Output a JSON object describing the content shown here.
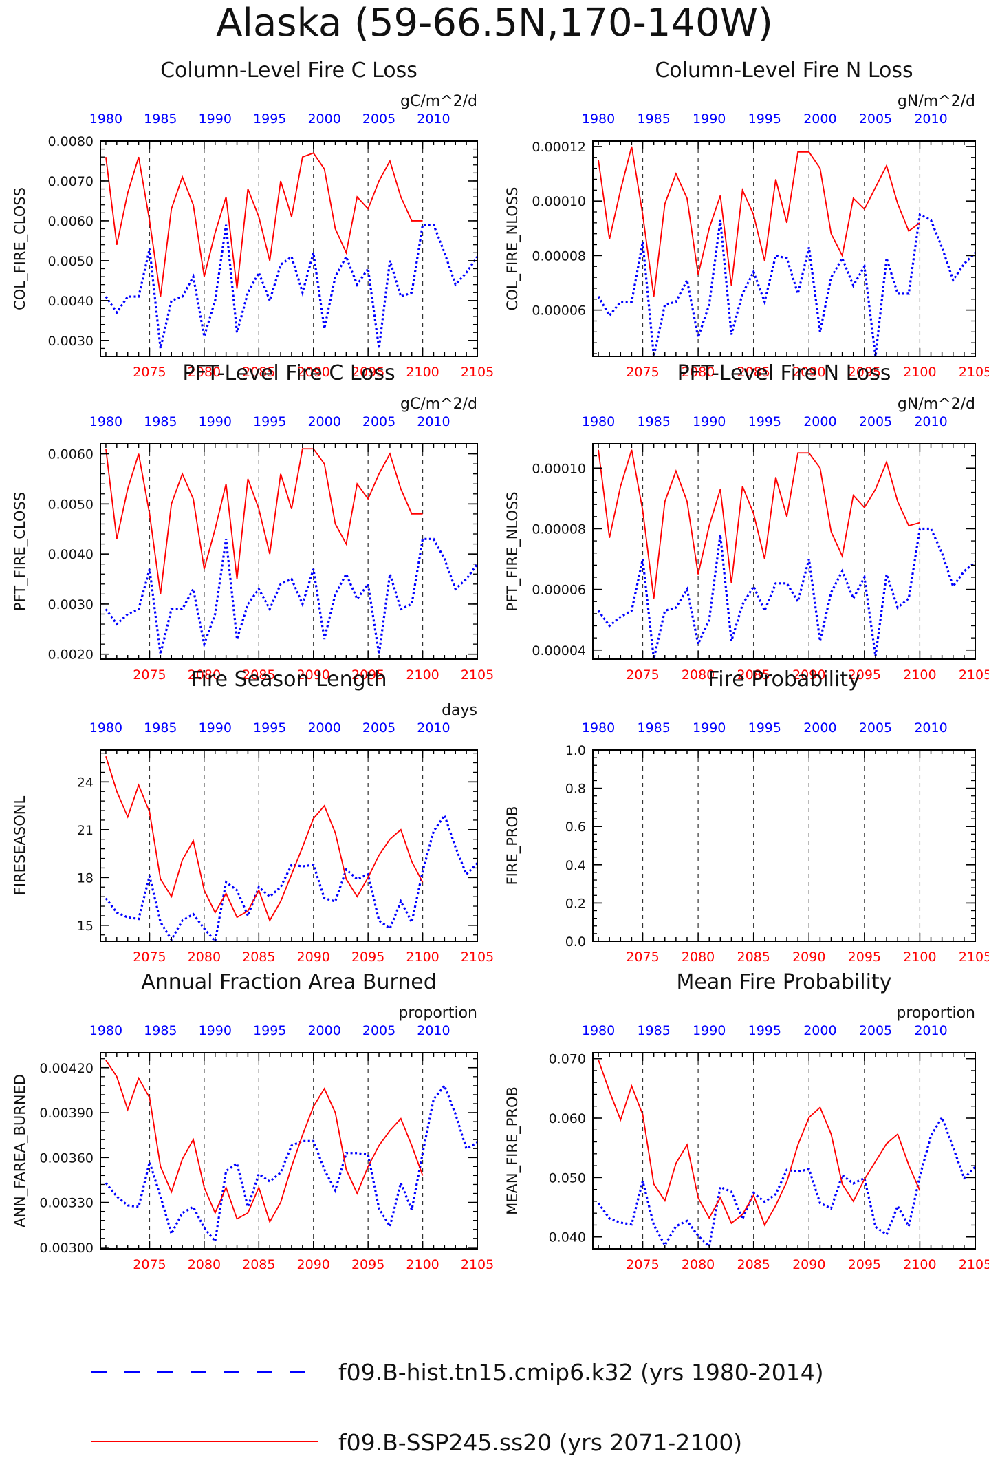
{
  "page_title": "Alaska (59-66.5N,170-140W)",
  "colors": {
    "hist": "#0000ff",
    "ssp": "#ff0000",
    "axis": "#000000"
  },
  "legend": [
    {
      "label": "f09.B-hist.tn15.cmip6.k32 (yrs 1980-2014)",
      "color": "#0000ff",
      "style": "dashed"
    },
    {
      "label": "f09.B-SSP245.ss20 (yrs 2071-2100)",
      "color": "#ff0000",
      "style": "solid"
    }
  ],
  "chart_data": [
    {
      "type": "line",
      "title": "Column-Level Fire C Loss",
      "units": "gC/m^2/d",
      "ylabel": "COL_FIRE_CLOSS",
      "ylim": [
        0.0026,
        0.008
      ],
      "yticks": [
        "0.0030",
        "0.0040",
        "0.0050",
        "0.0060",
        "0.0070",
        "0.0080"
      ],
      "ytick_values": [
        0.003,
        0.004,
        0.005,
        0.006,
        0.007,
        0.008
      ],
      "x_top_ticks": [
        "1980",
        "1985",
        "1990",
        "1995",
        "2000",
        "2005",
        "2010"
      ],
      "x_bottom_ticks": [
        "2075",
        "2080",
        "2085",
        "2090",
        "2095",
        "2100",
        "2105"
      ],
      "series": [
        {
          "values": [
            0.0041,
            0.0037,
            0.0041,
            0.0041,
            0.0053,
            0.0028,
            0.004,
            0.0041,
            0.0046,
            0.0031,
            0.004,
            0.0059,
            0.0032,
            0.0042,
            0.0047,
            0.004,
            0.0049,
            0.0051,
            0.0042,
            0.0052,
            0.0033,
            0.0046,
            0.0051,
            0.0044,
            0.0048,
            0.0028,
            0.005,
            0.0041,
            0.0042,
            0.0059,
            0.0059,
            0.0052,
            0.0044,
            0.0047,
            0.0051
          ]
        },
        {
          "values": [
            0.0076,
            0.0054,
            0.0067,
            0.0076,
            0.006,
            0.0041,
            0.0063,
            0.0071,
            0.0064,
            0.0046,
            0.0057,
            0.0066,
            0.0043,
            0.0068,
            0.0061,
            0.005,
            0.007,
            0.0061,
            0.0076,
            0.0077,
            0.0073,
            0.0058,
            0.0052,
            0.0066,
            0.0063,
            0.007,
            0.0075,
            0.0066,
            0.006,
            0.006
          ]
        }
      ]
    },
    {
      "type": "line",
      "title": "Column-Level Fire N Loss",
      "units": "gN/m^2/d",
      "ylabel": "COL_FIRE_NLOSS",
      "ylim": [
        4.3e-05,
        0.000122
      ],
      "yticks": [
        "0.00006",
        "0.00008",
        "0.00010",
        "0.00012"
      ],
      "ytick_values": [
        6e-05,
        8e-05,
        0.0001,
        0.00012
      ],
      "x_top_ticks": [
        "1980",
        "1985",
        "1990",
        "1995",
        "2000",
        "2005",
        "2010"
      ],
      "x_bottom_ticks": [
        "2075",
        "2080",
        "2085",
        "2090",
        "2095",
        "2100",
        "2105"
      ],
      "series": [
        {
          "values": [
            6.5e-05,
            5.8e-05,
            6.3e-05,
            6.3e-05,
            8.5e-05,
            4.3e-05,
            6.2e-05,
            6.3e-05,
            7.1e-05,
            5e-05,
            6.2e-05,
            9.3e-05,
            5.1e-05,
            6.6e-05,
            7.4e-05,
            6.3e-05,
            8e-05,
            7.9e-05,
            6.6e-05,
            8.3e-05,
            5.2e-05,
            7.2e-05,
            7.9e-05,
            6.9e-05,
            7.6e-05,
            4.3e-05,
            7.9e-05,
            6.6e-05,
            6.6e-05,
            9.5e-05,
            9.3e-05,
            8.3e-05,
            7.1e-05,
            7.7e-05,
            8.1e-05
          ]
        },
        {
          "values": [
            0.000115,
            8.6e-05,
            0.000104,
            0.00012,
            9.5e-05,
            6.5e-05,
            9.9e-05,
            0.00011,
            0.000101,
            7.3e-05,
            9e-05,
            0.000102,
            6.9e-05,
            0.000104,
            9.5e-05,
            7.8e-05,
            0.000108,
            9.2e-05,
            0.000118,
            0.000118,
            0.000112,
            8.8e-05,
            8e-05,
            0.000101,
            9.7e-05,
            0.000105,
            0.000113,
            9.9e-05,
            8.9e-05,
            9.2e-05
          ]
        }
      ]
    },
    {
      "type": "line",
      "title": "PFT-Level Fire C Loss",
      "units": "gC/m^2/d",
      "ylabel": "PFT_FIRE_CLOSS",
      "ylim": [
        0.0019,
        0.0062
      ],
      "yticks": [
        "0.0020",
        "0.0030",
        "0.0040",
        "0.0050",
        "0.0060"
      ],
      "ytick_values": [
        0.002,
        0.003,
        0.004,
        0.005,
        0.006
      ],
      "x_top_ticks": [
        "1980",
        "1985",
        "1990",
        "1995",
        "2000",
        "2005",
        "2010"
      ],
      "x_bottom_ticks": [
        "2075",
        "2080",
        "2085",
        "2090",
        "2095",
        "2100",
        "2105"
      ],
      "series": [
        {
          "values": [
            0.0029,
            0.0026,
            0.0028,
            0.0029,
            0.0037,
            0.002,
            0.0029,
            0.0029,
            0.0033,
            0.0022,
            0.0028,
            0.0043,
            0.0023,
            0.003,
            0.0033,
            0.0029,
            0.0034,
            0.0035,
            0.003,
            0.0037,
            0.0023,
            0.0032,
            0.0036,
            0.0031,
            0.0034,
            0.002,
            0.0036,
            0.0029,
            0.003,
            0.0043,
            0.0043,
            0.0039,
            0.0033,
            0.0035,
            0.0038
          ]
        },
        {
          "values": [
            0.0061,
            0.0043,
            0.0053,
            0.006,
            0.0048,
            0.0032,
            0.005,
            0.0056,
            0.0051,
            0.0037,
            0.0045,
            0.0054,
            0.0035,
            0.0055,
            0.0049,
            0.004,
            0.0056,
            0.0049,
            0.0061,
            0.0061,
            0.0058,
            0.0046,
            0.0042,
            0.0054,
            0.0051,
            0.0056,
            0.006,
            0.0053,
            0.0048,
            0.0048
          ]
        }
      ]
    },
    {
      "type": "line",
      "title": "PFT-Level Fire N Loss",
      "units": "gN/m^2/d",
      "ylabel": "PFT_FIRE_NLOSS",
      "ylim": [
        3.7e-05,
        0.000108
      ],
      "yticks": [
        "0.00004",
        "0.00006",
        "0.00008",
        "0.00010"
      ],
      "ytick_values": [
        4e-05,
        6e-05,
        8e-05,
        0.0001
      ],
      "x_top_ticks": [
        "1980",
        "1985",
        "1990",
        "1995",
        "2000",
        "2005",
        "2010"
      ],
      "x_bottom_ticks": [
        "2075",
        "2080",
        "2085",
        "2090",
        "2095",
        "2100",
        "2105"
      ],
      "series": [
        {
          "values": [
            5.3e-05,
            4.8e-05,
            5.1e-05,
            5.3e-05,
            7e-05,
            3.7e-05,
            5.3e-05,
            5.4e-05,
            6e-05,
            4.2e-05,
            5e-05,
            7.8e-05,
            4.3e-05,
            5.5e-05,
            6.1e-05,
            5.3e-05,
            6.2e-05,
            6.2e-05,
            5.6e-05,
            7e-05,
            4.3e-05,
            5.9e-05,
            6.6e-05,
            5.7e-05,
            6.4e-05,
            3.8e-05,
            6.5e-05,
            5.4e-05,
            5.7e-05,
            8e-05,
            8e-05,
            7.2e-05,
            6.1e-05,
            6.6e-05,
            6.9e-05
          ]
        },
        {
          "values": [
            0.000106,
            7.7e-05,
            9.4e-05,
            0.000106,
            8.6e-05,
            5.7e-05,
            8.9e-05,
            9.9e-05,
            8.9e-05,
            6.5e-05,
            8.1e-05,
            9.3e-05,
            6.2e-05,
            9.4e-05,
            8.5e-05,
            7e-05,
            9.7e-05,
            8.4e-05,
            0.000105,
            0.000105,
            0.0001,
            7.9e-05,
            7.1e-05,
            9.1e-05,
            8.7e-05,
            9.3e-05,
            0.000102,
            8.9e-05,
            8.1e-05,
            8.2e-05
          ]
        }
      ]
    },
    {
      "type": "line",
      "title": "Fire Season Length",
      "units": "days",
      "ylabel": "FIRESEASONL",
      "ylim": [
        14.0,
        26.0
      ],
      "yticks": [
        "15",
        "18",
        "21",
        "24"
      ],
      "ytick_values": [
        15,
        18,
        21,
        24
      ],
      "x_top_ticks": [
        "1980",
        "1985",
        "1990",
        "1995",
        "2000",
        "2005",
        "2010"
      ],
      "x_bottom_ticks": [
        "2075",
        "2080",
        "2085",
        "2090",
        "2095",
        "2100",
        "2105"
      ],
      "series": [
        {
          "values": [
            16.7,
            15.8,
            15.5,
            15.4,
            18.1,
            15.2,
            14.1,
            15.3,
            15.7,
            14.8,
            14.0,
            17.7,
            17.2,
            15.6,
            17.4,
            16.8,
            17.4,
            18.8,
            18.7,
            18.8,
            16.7,
            16.5,
            18.5,
            17.9,
            18.2,
            15.3,
            14.8,
            16.5,
            15.2,
            18.4,
            20.9,
            21.9,
            19.9,
            18.2,
            18.9
          ]
        },
        {
          "values": [
            25.6,
            23.4,
            21.8,
            23.8,
            22.1,
            17.9,
            16.8,
            19.1,
            20.3,
            17.2,
            15.8,
            17.0,
            15.5,
            15.9,
            17.2,
            15.3,
            16.5,
            18.2,
            19.9,
            21.7,
            22.5,
            20.8,
            17.9,
            16.8,
            18.0,
            19.4,
            20.4,
            21.0,
            19.0,
            17.7
          ]
        }
      ]
    },
    {
      "type": "line",
      "title": "Fire Probability",
      "units": "",
      "ylabel": "FIRE_PROB",
      "ylim": [
        0.0,
        1.0
      ],
      "yticks": [
        "0.0",
        "0.2",
        "0.4",
        "0.6",
        "0.8",
        "1.0"
      ],
      "ytick_values": [
        0.0,
        0.2,
        0.4,
        0.6,
        0.8,
        1.0
      ],
      "x_top_ticks": [
        "1980",
        "1985",
        "1990",
        "1995",
        "2000",
        "2005",
        "2010"
      ],
      "x_bottom_ticks": [
        "2075",
        "2080",
        "2085",
        "2090",
        "2095",
        "2100",
        "2105"
      ],
      "series": []
    },
    {
      "type": "line",
      "title": "Annual Fraction Area Burned",
      "units": "proportion",
      "ylabel": "ANN_FAREA_BURNED",
      "ylim": [
        0.00299,
        0.0043
      ],
      "yticks": [
        "0.00300",
        "0.00330",
        "0.00360",
        "0.00390",
        "0.00420"
      ],
      "ytick_values": [
        0.003,
        0.0033,
        0.0036,
        0.0039,
        0.0042
      ],
      "x_top_ticks": [
        "1980",
        "1985",
        "1990",
        "1995",
        "2000",
        "2005",
        "2010"
      ],
      "x_bottom_ticks": [
        "2075",
        "2080",
        "2085",
        "2090",
        "2095",
        "2100",
        "2105"
      ],
      "series": [
        {
          "values": [
            0.00343,
            0.00334,
            0.00328,
            0.00327,
            0.00357,
            0.00334,
            0.00309,
            0.00323,
            0.00327,
            0.00313,
            0.00304,
            0.00351,
            0.00356,
            0.00327,
            0.00349,
            0.00344,
            0.0035,
            0.00368,
            0.00371,
            0.00371,
            0.00352,
            0.00338,
            0.00363,
            0.00363,
            0.00362,
            0.00326,
            0.00314,
            0.00343,
            0.00325,
            0.00363,
            0.00399,
            0.00408,
            0.00389,
            0.00366,
            0.0037
          ]
        },
        {
          "values": [
            0.00425,
            0.00414,
            0.00392,
            0.00413,
            0.004,
            0.00354,
            0.00337,
            0.00359,
            0.00372,
            0.0034,
            0.00323,
            0.0034,
            0.00319,
            0.00323,
            0.0034,
            0.00317,
            0.0033,
            0.00354,
            0.00375,
            0.00394,
            0.00406,
            0.0039,
            0.00352,
            0.00336,
            0.00354,
            0.00368,
            0.00378,
            0.00386,
            0.00368,
            0.00348
          ]
        }
      ]
    },
    {
      "type": "line",
      "title": "Mean Fire Probability",
      "units": "proportion",
      "ylabel": "MEAN_FIRE_PROB",
      "ylim": [
        0.038,
        0.071
      ],
      "yticks": [
        "0.040",
        "0.050",
        "0.060",
        "0.070"
      ],
      "ytick_values": [
        0.04,
        0.05,
        0.06,
        0.07
      ],
      "x_top_ticks": [
        "1980",
        "1985",
        "1990",
        "1995",
        "2000",
        "2005",
        "2010"
      ],
      "x_bottom_ticks": [
        "2075",
        "2080",
        "2085",
        "2090",
        "2095",
        "2100",
        "2105"
      ],
      "series": [
        {
          "values": [
            0.0457,
            0.0431,
            0.0424,
            0.0421,
            0.0494,
            0.042,
            0.0386,
            0.0418,
            0.0427,
            0.0402,
            0.0384,
            0.0484,
            0.0476,
            0.043,
            0.0474,
            0.0459,
            0.0472,
            0.0513,
            0.051,
            0.0514,
            0.0457,
            0.0448,
            0.0504,
            0.049,
            0.0499,
            0.0417,
            0.0404,
            0.0452,
            0.0418,
            0.0502,
            0.057,
            0.0601,
            0.0551,
            0.0499,
            0.0518
          ]
        },
        {
          "values": [
            0.0698,
            0.0645,
            0.0597,
            0.0654,
            0.0606,
            0.0489,
            0.0461,
            0.0524,
            0.0555,
            0.0466,
            0.0432,
            0.0466,
            0.0423,
            0.0438,
            0.047,
            0.042,
            0.0453,
            0.0493,
            0.0555,
            0.0601,
            0.0618,
            0.0573,
            0.0489,
            0.046,
            0.0497,
            0.0527,
            0.0557,
            0.0573,
            0.0521,
            0.0478
          ]
        }
      ]
    }
  ]
}
